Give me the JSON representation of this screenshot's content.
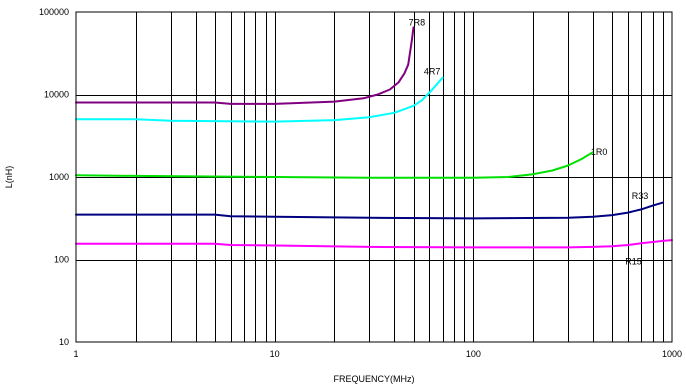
{
  "chart_data": {
    "type": "line",
    "xlabel": "FREQUENCY(MHz)",
    "ylabel": "L(nH)",
    "x_scale": "log",
    "y_scale": "log",
    "xlim": [
      1,
      1000
    ],
    "ylim": [
      10,
      100000
    ],
    "grid": true,
    "x_ticks": [
      "1",
      "10",
      "100",
      "1000"
    ],
    "y_ticks": [
      "10",
      "100",
      "1000",
      "10000",
      "100000"
    ],
    "series": [
      {
        "name": "7R8",
        "color": "#800080",
        "x": [
          1,
          2,
          5,
          6,
          10,
          20,
          28,
          33,
          38,
          42,
          45,
          47,
          49,
          50
        ],
        "y": [
          8000,
          8000,
          8000,
          7700,
          7700,
          8200,
          9000,
          10000,
          11500,
          14000,
          18000,
          23000,
          45000,
          65000
        ]
      },
      {
        "name": "4R7",
        "color": "#00ffff",
        "x": [
          1,
          2,
          3,
          10,
          20,
          30,
          40,
          50,
          55,
          60,
          65,
          70
        ],
        "y": [
          5000,
          5000,
          4800,
          4700,
          4900,
          5300,
          6000,
          7300,
          8500,
          10500,
          13000,
          16000
        ]
      },
      {
        "name": "1R0",
        "color": "#00e000",
        "x": [
          1,
          2,
          10,
          30,
          100,
          150,
          200,
          250,
          300,
          350,
          400
        ],
        "y": [
          1050,
          1030,
          1000,
          980,
          980,
          1000,
          1080,
          1200,
          1380,
          1650,
          2000
        ]
      },
      {
        "name": "R33",
        "color": "#000080",
        "x": [
          1,
          5,
          6,
          10,
          30,
          100,
          300,
          400,
          500,
          600,
          700,
          800,
          900
        ],
        "y": [
          350,
          350,
          335,
          330,
          320,
          315,
          320,
          330,
          345,
          370,
          405,
          450,
          490
        ]
      },
      {
        "name": "R15",
        "color": "#ff00ff",
        "x": [
          1,
          5,
          6,
          10,
          30,
          100,
          300,
          400,
          500,
          600,
          700,
          800,
          900,
          1000
        ],
        "y": [
          155,
          155,
          150,
          148,
          142,
          140,
          140,
          142,
          145,
          150,
          157,
          163,
          168,
          172
        ]
      }
    ],
    "labels": [
      {
        "text": "7R8",
        "x": 52,
        "y": 75000
      },
      {
        "text": "4R7",
        "x": 62,
        "y": 19000
      },
      {
        "text": "1R0",
        "x": 430,
        "y": 2000
      },
      {
        "text": "R33",
        "x": 690,
        "y": 590
      },
      {
        "text": "R15",
        "x": 640,
        "y": 95
      }
    ]
  }
}
